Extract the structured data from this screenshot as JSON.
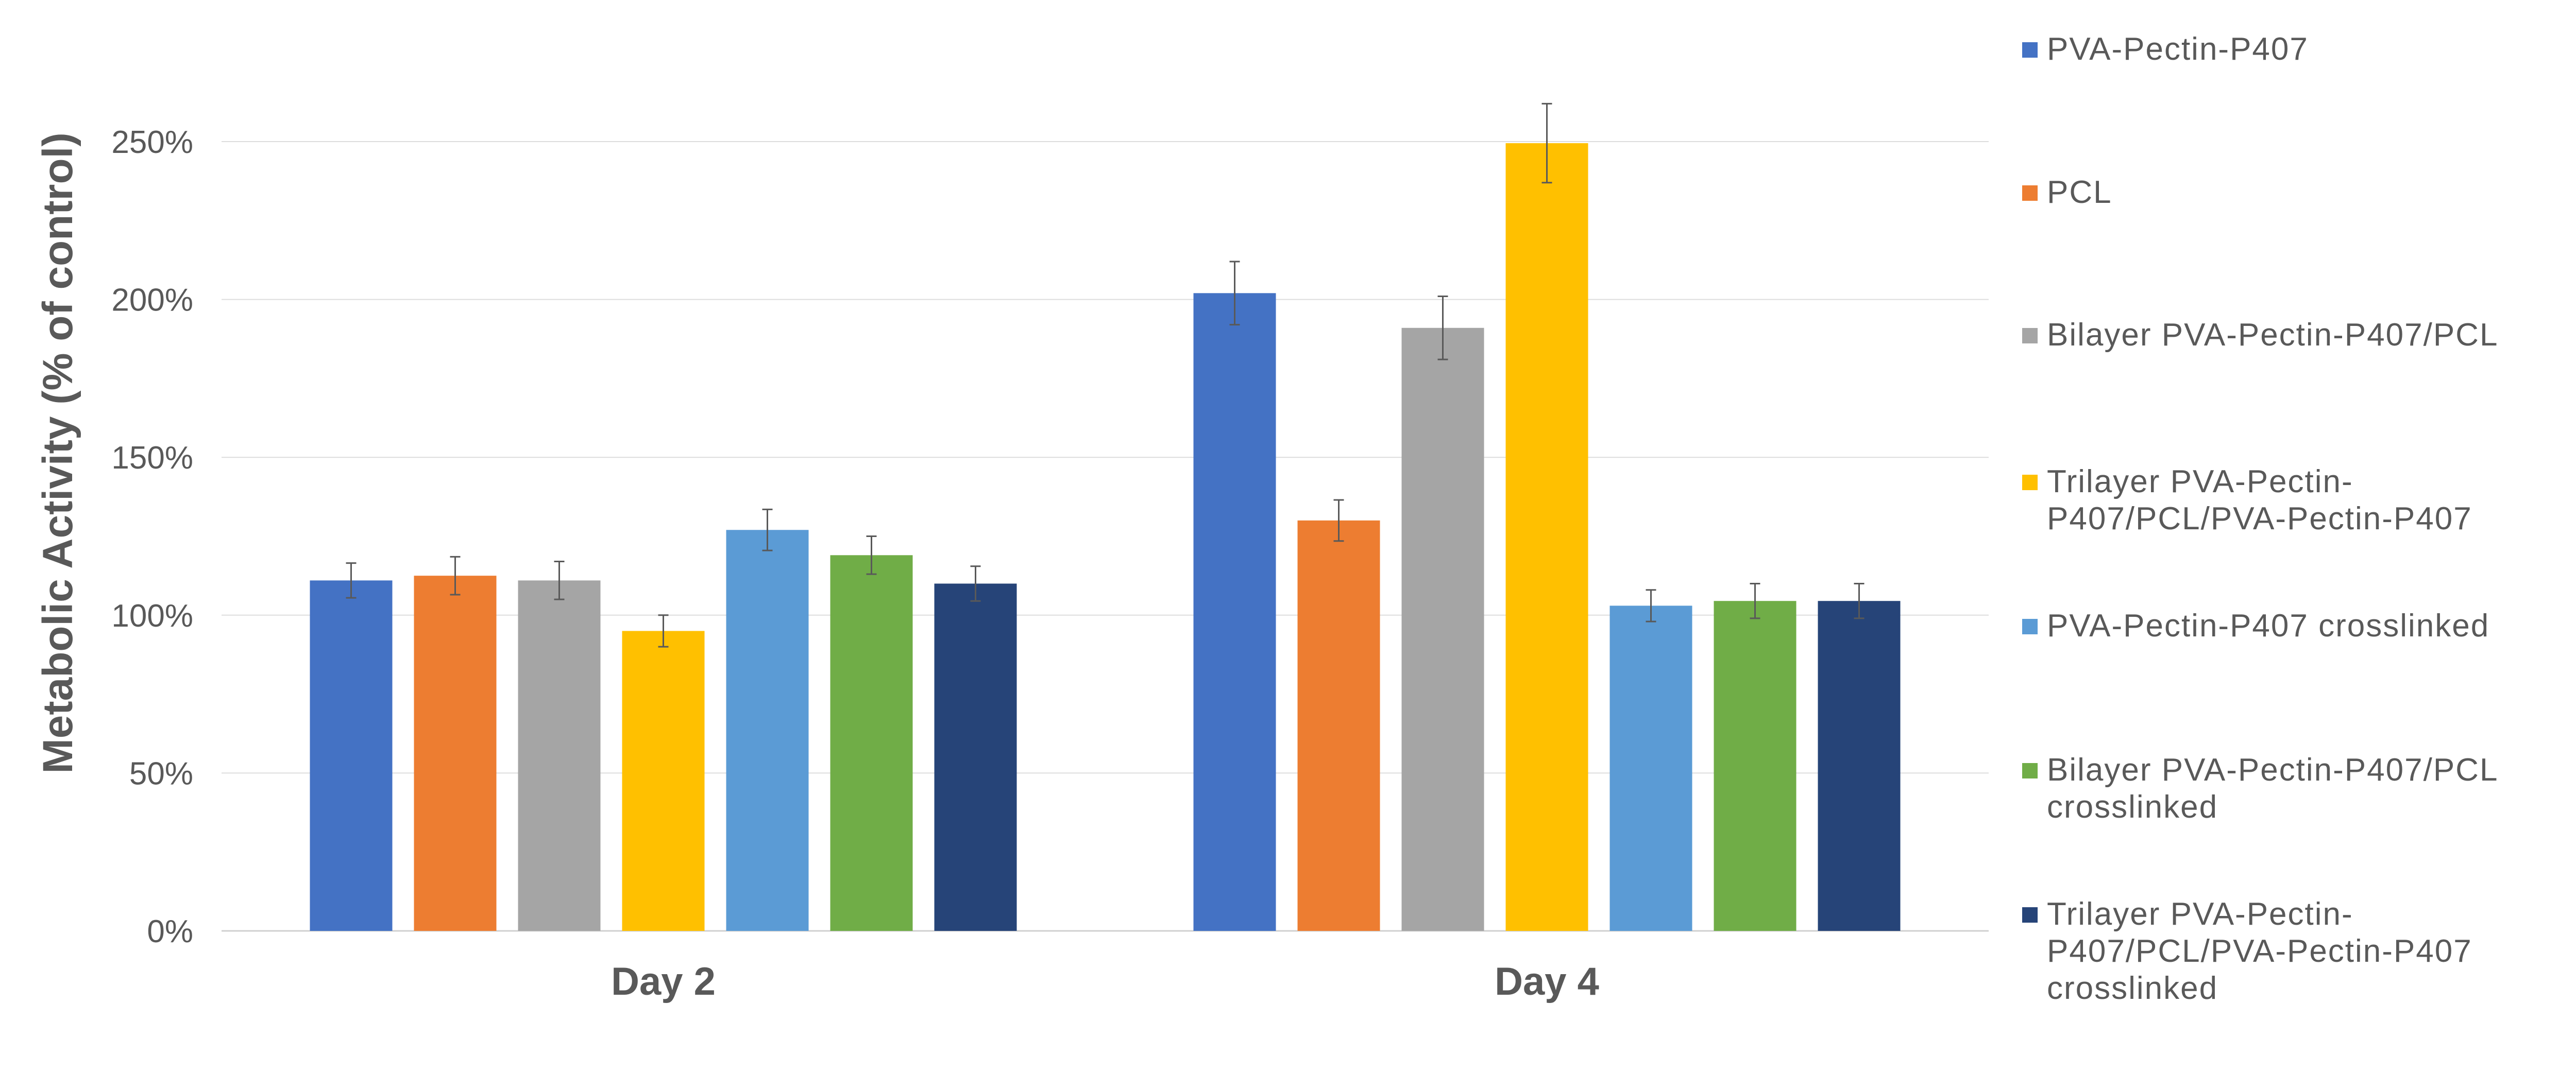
{
  "chart_data": {
    "type": "bar",
    "title": "",
    "xlabel": "",
    "ylabel": "Metabolic Activity (% of control)",
    "ylim": [
      0,
      250
    ],
    "yticks": [
      "0%",
      "50%",
      "100%",
      "150%",
      "200%",
      "250%"
    ],
    "ytick_values": [
      0,
      50,
      100,
      150,
      200,
      250
    ],
    "grid": true,
    "legend_position": "right",
    "categories": [
      "Day 2",
      "Day 4"
    ],
    "series": [
      {
        "name": "PVA-Pectin-P407",
        "color": "#4472C4",
        "values": [
          111,
          202
        ],
        "errors": [
          5.5,
          10
        ]
      },
      {
        "name": "PCL",
        "color": "#ED7D31",
        "values": [
          112.5,
          130
        ],
        "errors": [
          6,
          6.5
        ]
      },
      {
        "name": "Bilayer PVA-Pectin-P407/PCL",
        "color": "#A5A5A5",
        "values": [
          111,
          191
        ],
        "errors": [
          6,
          10
        ]
      },
      {
        "name": "Trilayer PVA-Pectin-P407/PCL/PVA-Pectin-P407",
        "color": "#FFC000",
        "values": [
          95,
          249.5
        ],
        "errors": [
          5,
          12.5
        ]
      },
      {
        "name": "PVA-Pectin-P407 crosslinked",
        "color": "#5B9BD5",
        "values": [
          127,
          103
        ],
        "errors": [
          6.5,
          5
        ]
      },
      {
        "name": "Bilayer PVA-Pectin-P407/PCL crosslinked",
        "color": "#70AD47",
        "values": [
          119,
          104.5
        ],
        "errors": [
          6,
          5.5
        ]
      },
      {
        "name": "Trilayer PVA-Pectin-P407/PCL/PVA-Pectin-P407 crosslinked",
        "color": "#264478",
        "values": [
          110,
          104.5
        ],
        "errors": [
          5.5,
          5.5
        ]
      }
    ]
  },
  "legend": {
    "items": [
      {
        "label": "PVA-Pectin-P407",
        "color": "#4472C4"
      },
      {
        "label": "PCL",
        "color": "#ED7D31"
      },
      {
        "label": "Bilayer PVA-Pectin-P407/PCL",
        "color": "#A5A5A5"
      },
      {
        "label": "Trilayer PVA-Pectin-\nP407/PCL/PVA-Pectin-P407",
        "color": "#FFC000"
      },
      {
        "label": "PVA-Pectin-P407 crosslinked",
        "color": "#5B9BD5"
      },
      {
        "label": "Bilayer PVA-Pectin-P407/PCL\ncrosslinked",
        "color": "#70AD47"
      },
      {
        "label": "Trilayer PVA-Pectin-\nP407/PCL/PVA-Pectin-P407\ncrosslinked",
        "color": "#264478"
      }
    ]
  }
}
